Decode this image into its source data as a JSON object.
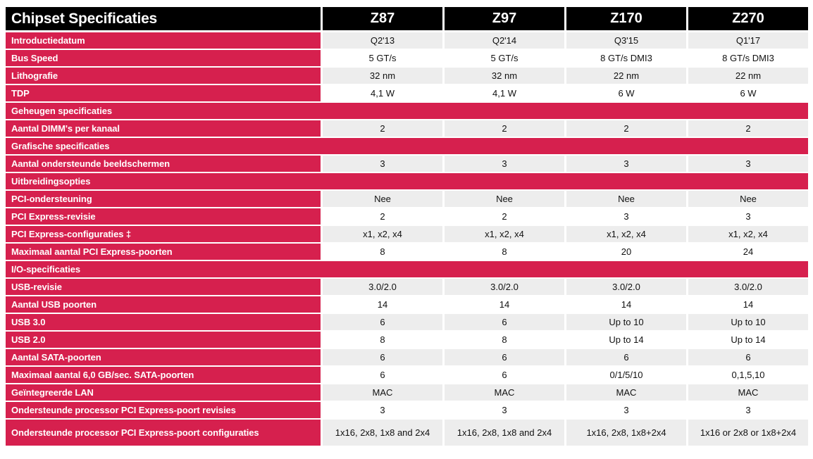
{
  "table": {
    "header": {
      "title": "Chipset Specificaties",
      "columns": [
        "Z87",
        "Z97",
        "Z170",
        "Z270"
      ]
    },
    "rows": [
      {
        "type": "data",
        "label": "Introductiedatum",
        "values": [
          "Q2'13",
          "Q2'14",
          "Q3'15",
          "Q1'17"
        ]
      },
      {
        "type": "data",
        "label": "Bus Speed",
        "values": [
          "5 GT/s",
          "5 GT/s",
          "8 GT/s DMI3",
          "8 GT/s DMI3"
        ]
      },
      {
        "type": "data",
        "label": "Lithografie",
        "values": [
          "32 nm",
          "32 nm",
          "22 nm",
          "22 nm"
        ]
      },
      {
        "type": "data",
        "label": "TDP",
        "values": [
          "4,1 W",
          "4,1 W",
          "6 W",
          "6 W"
        ]
      },
      {
        "type": "section",
        "label": "Geheugen specificaties"
      },
      {
        "type": "data",
        "label": "Aantal DIMM's per kanaal",
        "values": [
          "2",
          "2",
          "2",
          "2"
        ]
      },
      {
        "type": "section",
        "label": "Grafische specificaties"
      },
      {
        "type": "data",
        "label": "Aantal ondersteunde beeldschermen",
        "values": [
          "3",
          "3",
          "3",
          "3"
        ]
      },
      {
        "type": "section",
        "label": "Uitbreidingsopties"
      },
      {
        "type": "data",
        "label": "PCI-ondersteuning",
        "values": [
          "Nee",
          "Nee",
          "Nee",
          "Nee"
        ]
      },
      {
        "type": "data",
        "label": "PCI Express-revisie",
        "values": [
          "2",
          "2",
          "3",
          "3"
        ]
      },
      {
        "type": "data",
        "label": "PCI Express-configuraties ‡",
        "values": [
          "x1, x2, x4",
          "x1, x2, x4",
          "x1, x2, x4",
          "x1, x2, x4"
        ]
      },
      {
        "type": "data",
        "label": "Maximaal aantal PCI Express-poorten",
        "values": [
          "8",
          "8",
          "20",
          "24"
        ]
      },
      {
        "type": "section",
        "label": "I/O-specificaties"
      },
      {
        "type": "data",
        "label": "USB-revisie",
        "values": [
          "3.0/2.0",
          "3.0/2.0",
          "3.0/2.0",
          "3.0/2.0"
        ]
      },
      {
        "type": "data",
        "label": "Aantal USB poorten",
        "values": [
          "14",
          "14",
          "14",
          "14"
        ]
      },
      {
        "type": "data",
        "label": "USB 3.0",
        "values": [
          "6",
          "6",
          "Up to 10",
          "Up to 10"
        ]
      },
      {
        "type": "data",
        "label": "USB 2.0",
        "values": [
          "8",
          "8",
          "Up to 14",
          "Up to 14"
        ]
      },
      {
        "type": "data",
        "label": "Aantal SATA-poorten",
        "values": [
          "6",
          "6",
          "6",
          "6"
        ]
      },
      {
        "type": "data",
        "label": "Maximaal aantal 6,0 GB/sec. SATA-poorten",
        "values": [
          "6",
          "6",
          "0/1/5/10",
          "0,1,5,10"
        ]
      },
      {
        "type": "data",
        "label": "Geïntegreerde LAN",
        "values": [
          "MAC",
          "MAC",
          "MAC",
          "MAC"
        ]
      },
      {
        "type": "data",
        "label": "Ondersteunde processor PCI Express-poort revisies",
        "values": [
          "3",
          "3",
          "3",
          "3"
        ]
      },
      {
        "type": "data",
        "label": "Ondersteunde processor PCI Express-poort configuraties",
        "values": [
          "1x16, 2x8, 1x8 and 2x4",
          "1x16, 2x8, 1x8 and 2x4",
          "1x16, 2x8, 1x8+2x4",
          "1x16 or 2x8 or 1x8+2x4"
        ]
      }
    ]
  },
  "colors": {
    "accent": "#D6204E",
    "row_gray": "#EDEDED",
    "header_black": "#000000"
  }
}
